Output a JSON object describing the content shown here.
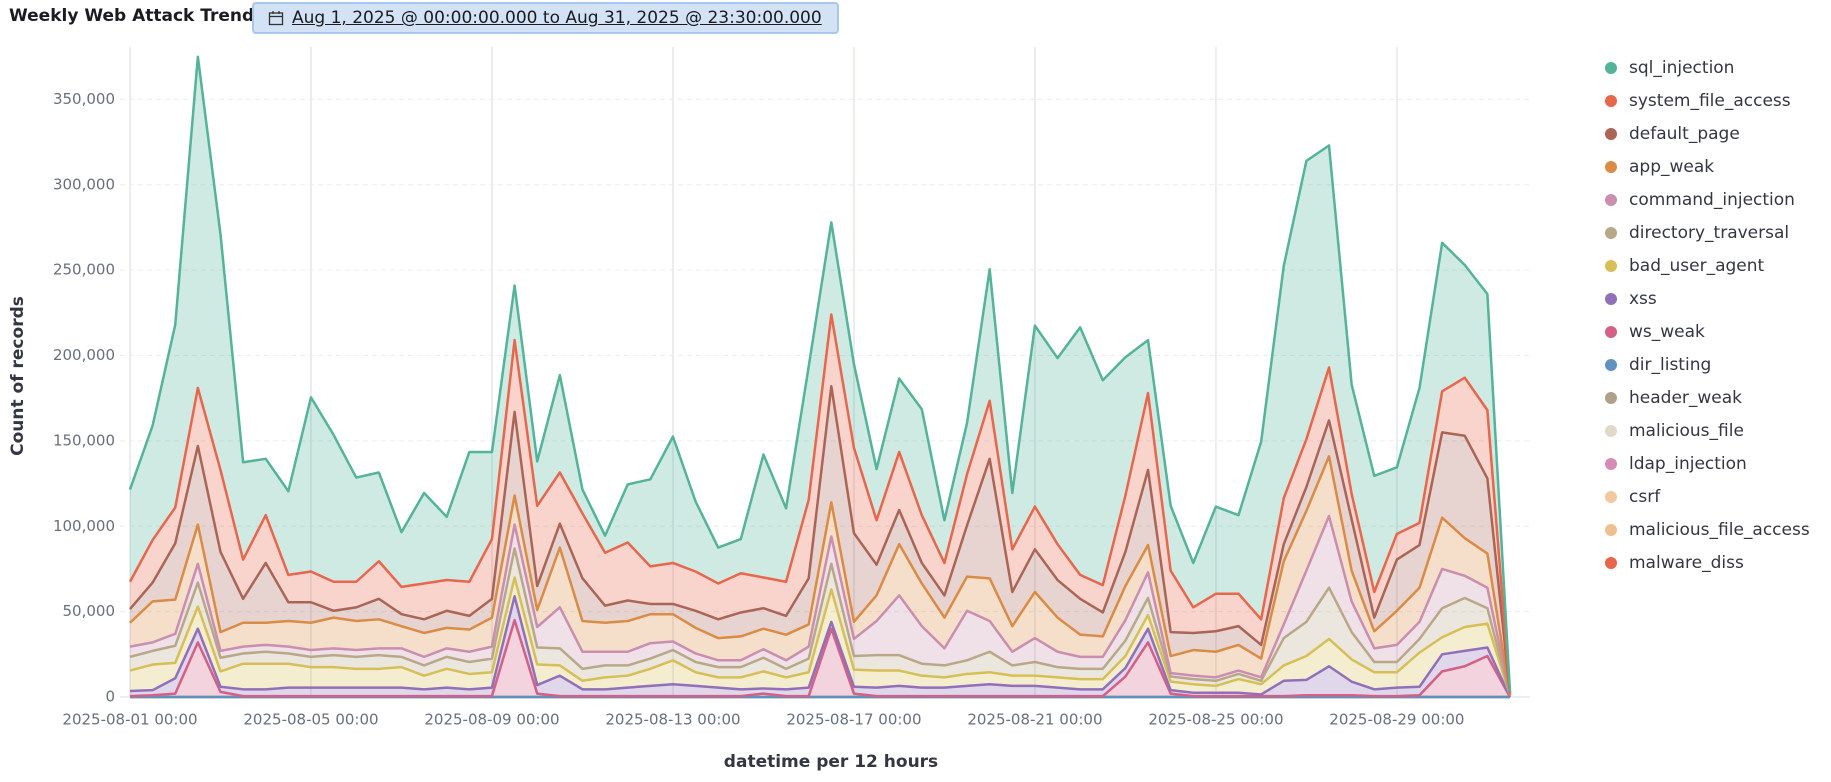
{
  "header": {
    "title": "Weekly Web Attack Trends",
    "date_range": "Aug 1, 2025 @ 00:00:00.000 to Aug 31, 2025 @ 23:30:00.000"
  },
  "chart_data": {
    "type": "area",
    "stacked": true,
    "grid": true,
    "legend": "right",
    "ylabel": "Count of records",
    "xlabel": "datetime per 12 hours",
    "ylim": [
      0,
      376000
    ],
    "yticks": [
      0,
      {
        "value": 50000,
        "label": "50,000"
      },
      {
        "value": 100000,
        "label": "100,000"
      },
      {
        "value": 150000,
        "label": "150,000"
      },
      {
        "value": 200000,
        "label": "200,000"
      },
      {
        "value": 250000,
        "label": "250,000"
      },
      {
        "value": 300000,
        "label": "300,000"
      },
      {
        "value": 350000,
        "label": "350,000"
      }
    ],
    "x": [
      "2025-08-01 00:00",
      "2025-08-01 12:00",
      "2025-08-02 00:00",
      "2025-08-02 12:00",
      "2025-08-03 00:00",
      "2025-08-03 12:00",
      "2025-08-04 00:00",
      "2025-08-04 12:00",
      "2025-08-05 00:00",
      "2025-08-05 12:00",
      "2025-08-06 00:00",
      "2025-08-06 12:00",
      "2025-08-07 00:00",
      "2025-08-07 12:00",
      "2025-08-08 00:00",
      "2025-08-08 12:00",
      "2025-08-09 00:00",
      "2025-08-09 12:00",
      "2025-08-10 00:00",
      "2025-08-10 12:00",
      "2025-08-11 00:00",
      "2025-08-11 12:00",
      "2025-08-12 00:00",
      "2025-08-12 12:00",
      "2025-08-13 00:00",
      "2025-08-13 12:00",
      "2025-08-14 00:00",
      "2025-08-14 12:00",
      "2025-08-15 00:00",
      "2025-08-15 12:00",
      "2025-08-16 00:00",
      "2025-08-16 12:00",
      "2025-08-17 00:00",
      "2025-08-17 12:00",
      "2025-08-18 00:00",
      "2025-08-18 12:00",
      "2025-08-19 00:00",
      "2025-08-19 12:00",
      "2025-08-20 00:00",
      "2025-08-20 12:00",
      "2025-08-21 00:00",
      "2025-08-21 12:00",
      "2025-08-22 00:00",
      "2025-08-22 12:00",
      "2025-08-23 00:00",
      "2025-08-23 12:00",
      "2025-08-24 00:00",
      "2025-08-24 12:00",
      "2025-08-25 00:00",
      "2025-08-25 12:00",
      "2025-08-26 00:00",
      "2025-08-26 12:00",
      "2025-08-27 00:00",
      "2025-08-27 12:00",
      "2025-08-28 00:00",
      "2025-08-28 12:00",
      "2025-08-29 00:00",
      "2025-08-29 12:00",
      "2025-08-30 00:00",
      "2025-08-30 12:00",
      "2025-08-31 00:00",
      "2025-08-31 12:00"
    ],
    "series": [
      {
        "name": "sql_injection",
        "color": "#54B399",
        "values": [
          54000,
          67000,
          107000,
          194000,
          138000,
          57000,
          33000,
          49000,
          102000,
          86000,
          61000,
          52000,
          32000,
          53000,
          37000,
          76000,
          51000,
          32000,
          26000,
          57000,
          14000,
          10000,
          34000,
          51000,
          74000,
          41000,
          21000,
          20000,
          72000,
          43000,
          78000,
          54000,
          49000,
          30000,
          43000,
          62000,
          25000,
          30000,
          77000,
          33000,
          106000,
          109000,
          145000,
          120000,
          81000,
          31000,
          38000,
          26000,
          51000,
          46000,
          104000,
          136000,
          163000,
          130000,
          64000,
          68000,
          39000,
          79000,
          87000,
          66000,
          68000,
          1000
        ]
      },
      {
        "name": "system_file_access",
        "color": "#E7664C",
        "values": [
          16000,
          25000,
          21000,
          34000,
          48000,
          23000,
          28000,
          16000,
          18000,
          17000,
          15000,
          22000,
          16000,
          21000,
          18000,
          20000,
          35000,
          42000,
          47000,
          30000,
          38000,
          31000,
          34000,
          22000,
          24000,
          23000,
          21000,
          23000,
          18000,
          20000,
          46000,
          42000,
          50000,
          26000,
          34000,
          28000,
          19000,
          30000,
          34000,
          25000,
          25000,
          21000,
          14000,
          16000,
          33000,
          45000,
          36000,
          15000,
          22000,
          19000,
          15000,
          27000,
          28000,
          31000,
          15000,
          15000,
          15000,
          13000,
          24000,
          34000,
          40000,
          0
        ]
      },
      {
        "name": "default_page",
        "color": "#AA6556",
        "values": [
          8000,
          11000,
          33000,
          46000,
          47000,
          14000,
          35000,
          11000,
          12000,
          4000,
          8000,
          12000,
          7000,
          8000,
          10000,
          8000,
          11000,
          49000,
          14000,
          14000,
          25000,
          10000,
          12000,
          6000,
          6000,
          10000,
          11000,
          14000,
          12000,
          11000,
          27000,
          68000,
          52000,
          18000,
          20000,
          12000,
          13000,
          30000,
          70000,
          20000,
          25000,
          22000,
          21000,
          14000,
          20000,
          44000,
          14000,
          10000,
          12000,
          11000,
          8000,
          10000,
          14000,
          21000,
          30000,
          8000,
          30000,
          25000,
          50000,
          60000,
          44000,
          1000
        ]
      },
      {
        "name": "app_weak",
        "color": "#DA8B45",
        "values": [
          14000,
          24000,
          20000,
          23000,
          11000,
          14000,
          13000,
          15000,
          16000,
          18000,
          17000,
          17000,
          13000,
          14000,
          12000,
          13000,
          17000,
          17000,
          10000,
          35000,
          18000,
          17000,
          18000,
          17000,
          16000,
          15000,
          13000,
          14000,
          12000,
          15000,
          13000,
          20000,
          10000,
          15000,
          30000,
          25000,
          18000,
          20000,
          25000,
          15000,
          27000,
          20000,
          13000,
          12000,
          20000,
          16000,
          10000,
          15000,
          15000,
          15000,
          11000,
          37000,
          35000,
          35000,
          18000,
          10000,
          20000,
          20000,
          30000,
          22000,
          20000,
          0
        ]
      },
      {
        "name": "command_injection",
        "color": "#CA8EAE",
        "values": [
          6000,
          5000,
          7000,
          11000,
          4000,
          4000,
          4000,
          4000,
          4000,
          4000,
          4000,
          4000,
          5000,
          5000,
          5000,
          6000,
          7000,
          14000,
          12000,
          24000,
          10000,
          8000,
          8000,
          9000,
          5000,
          5000,
          4000,
          4000,
          5000,
          5000,
          7000,
          16000,
          10000,
          20000,
          35000,
          22000,
          10000,
          29000,
          18000,
          8000,
          14000,
          9000,
          7000,
          7000,
          12000,
          15000,
          2000,
          2000,
          2000,
          2000,
          2000,
          8000,
          30000,
          42000,
          18000,
          8000,
          10000,
          10000,
          23000,
          13000,
          12000,
          0
        ]
      },
      {
        "name": "directory_traversal",
        "color": "#B9A888",
        "values": [
          8000,
          8000,
          10000,
          14000,
          8000,
          6000,
          7000,
          6000,
          6000,
          7000,
          7000,
          8000,
          6000,
          6000,
          7000,
          7000,
          8000,
          17000,
          10000,
          10000,
          7000,
          7000,
          6000,
          6000,
          6000,
          6000,
          6000,
          6000,
          8000,
          5000,
          8000,
          15000,
          8000,
          9000,
          9000,
          7000,
          7000,
          8000,
          12000,
          6000,
          8000,
          6000,
          6000,
          6000,
          9000,
          10000,
          3000,
          3000,
          3000,
          3000,
          2000,
          16000,
          20000,
          30000,
          16000,
          6000,
          6000,
          8000,
          17000,
          17000,
          9000,
          0
        ]
      },
      {
        "name": "bad_user_agent",
        "color": "#D6BF57",
        "values": [
          12000,
          15000,
          9000,
          13000,
          9000,
          15000,
          15000,
          14000,
          12000,
          12000,
          11000,
          11000,
          12000,
          8000,
          11000,
          9000,
          9000,
          11000,
          12000,
          6000,
          5000,
          7000,
          7000,
          10000,
          14000,
          8000,
          6000,
          7000,
          10000,
          7000,
          9000,
          19000,
          10000,
          10000,
          9000,
          7000,
          6000,
          7000,
          7000,
          6000,
          6000,
          6000,
          6000,
          6000,
          7000,
          8000,
          5000,
          5000,
          4000,
          8000,
          6000,
          9000,
          14000,
          16000,
          13000,
          10000,
          9000,
          20000,
          10000,
          14000,
          14000,
          1000
        ]
      },
      {
        "name": "xss",
        "color": "#9170B8",
        "values": [
          3000,
          3000,
          9000,
          8000,
          3000,
          4000,
          4000,
          5000,
          5000,
          5000,
          5000,
          5000,
          5000,
          4000,
          5000,
          4000,
          5000,
          14000,
          5000,
          12000,
          4000,
          4000,
          5000,
          6000,
          7000,
          6000,
          5000,
          4000,
          3000,
          4000,
          5000,
          4000,
          4000,
          5000,
          6000,
          5000,
          5000,
          6000,
          7000,
          6000,
          6000,
          5000,
          4000,
          4000,
          5000,
          8000,
          2000,
          2000,
          2000,
          2000,
          1000,
          9000,
          9000,
          17000,
          8000,
          4000,
          5000,
          5000,
          10000,
          9000,
          5000,
          0
        ]
      },
      {
        "name": "ws_weak",
        "color": "#D36086",
        "values": [
          500,
          1000,
          2000,
          32000,
          3000,
          500,
          500,
          500,
          500,
          500,
          500,
          500,
          500,
          500,
          500,
          500,
          500,
          45000,
          2000,
          500,
          500,
          500,
          500,
          500,
          500,
          500,
          500,
          500,
          2000,
          500,
          500,
          40000,
          2000,
          500,
          500,
          500,
          500,
          500,
          500,
          500,
          500,
          500,
          500,
          500,
          12000,
          32000,
          2000,
          500,
          500,
          500,
          500,
          500,
          1000,
          1000,
          1000,
          500,
          500,
          1000,
          15000,
          18000,
          24000,
          0
        ]
      },
      {
        "name": "dir_listing",
        "color": "#6092C0",
        "values": [
          0,
          0,
          0,
          0,
          0,
          0,
          0,
          0,
          0,
          0,
          0,
          0,
          0,
          0,
          0,
          0,
          0,
          0,
          0,
          0,
          0,
          0,
          0,
          0,
          0,
          0,
          0,
          0,
          0,
          0,
          0,
          0,
          0,
          0,
          0,
          0,
          0,
          0,
          0,
          0,
          0,
          0,
          0,
          0,
          0,
          0,
          0,
          0,
          0,
          0,
          0,
          0,
          0,
          0,
          0,
          0,
          0,
          0,
          0,
          0,
          0,
          0
        ]
      },
      {
        "name": "header_weak",
        "color": "#B0A08A",
        "values": [
          0,
          0,
          0,
          0,
          0,
          0,
          0,
          0,
          0,
          0,
          0,
          0,
          0,
          0,
          0,
          0,
          0,
          0,
          0,
          0,
          0,
          0,
          0,
          0,
          0,
          0,
          0,
          0,
          0,
          0,
          0,
          0,
          0,
          0,
          0,
          0,
          0,
          0,
          0,
          0,
          0,
          0,
          0,
          0,
          0,
          0,
          0,
          0,
          0,
          0,
          0,
          0,
          0,
          0,
          0,
          0,
          0,
          0,
          0,
          0,
          0,
          0
        ]
      },
      {
        "name": "malicious_file",
        "color": "#E0D8C8",
        "values": [
          0,
          0,
          0,
          0,
          0,
          0,
          0,
          0,
          0,
          0,
          0,
          0,
          0,
          0,
          0,
          0,
          0,
          0,
          0,
          0,
          0,
          0,
          0,
          0,
          0,
          0,
          0,
          0,
          0,
          0,
          0,
          0,
          0,
          0,
          0,
          0,
          0,
          0,
          0,
          0,
          0,
          0,
          0,
          0,
          0,
          0,
          0,
          0,
          0,
          0,
          0,
          0,
          0,
          0,
          0,
          0,
          0,
          0,
          0,
          0,
          0,
          0
        ]
      },
      {
        "name": "ldap_injection",
        "color": "#D68AB6",
        "values": [
          0,
          0,
          0,
          0,
          0,
          0,
          0,
          0,
          0,
          0,
          0,
          0,
          0,
          0,
          0,
          0,
          0,
          0,
          0,
          0,
          0,
          0,
          0,
          0,
          0,
          0,
          0,
          0,
          0,
          0,
          0,
          0,
          0,
          0,
          0,
          0,
          0,
          0,
          0,
          0,
          0,
          0,
          0,
          0,
          0,
          0,
          0,
          0,
          0,
          0,
          0,
          0,
          0,
          0,
          0,
          0,
          0,
          0,
          0,
          0,
          0,
          0
        ]
      },
      {
        "name": "csrf",
        "color": "#F1C8A0",
        "values": [
          0,
          0,
          0,
          0,
          0,
          0,
          0,
          0,
          0,
          0,
          0,
          0,
          0,
          0,
          0,
          0,
          0,
          0,
          0,
          0,
          0,
          0,
          0,
          0,
          0,
          0,
          0,
          0,
          0,
          0,
          0,
          0,
          0,
          0,
          0,
          0,
          0,
          0,
          0,
          0,
          0,
          0,
          0,
          0,
          0,
          0,
          0,
          0,
          0,
          0,
          0,
          0,
          0,
          0,
          0,
          0,
          0,
          0,
          0,
          0,
          0,
          0
        ]
      },
      {
        "name": "malicious_file_access",
        "color": "#EFC08E",
        "values": [
          0,
          0,
          0,
          0,
          0,
          0,
          0,
          0,
          0,
          0,
          0,
          0,
          0,
          0,
          0,
          0,
          0,
          0,
          0,
          0,
          0,
          0,
          0,
          0,
          0,
          0,
          0,
          0,
          0,
          0,
          0,
          0,
          0,
          0,
          0,
          0,
          0,
          0,
          0,
          0,
          0,
          0,
          0,
          0,
          0,
          0,
          0,
          0,
          0,
          0,
          0,
          0,
          0,
          0,
          0,
          0,
          0,
          0,
          0,
          0,
          0,
          0
        ]
      },
      {
        "name": "malware_diss",
        "color": "#E7664C",
        "values": [
          0,
          0,
          0,
          0,
          0,
          0,
          0,
          0,
          0,
          0,
          0,
          0,
          0,
          0,
          0,
          0,
          0,
          0,
          0,
          0,
          0,
          0,
          0,
          0,
          0,
          0,
          0,
          0,
          0,
          0,
          0,
          0,
          0,
          0,
          0,
          0,
          0,
          0,
          0,
          0,
          0,
          0,
          0,
          0,
          0,
          0,
          0,
          0,
          0,
          0,
          0,
          0,
          0,
          0,
          0,
          0,
          0,
          0,
          0,
          0,
          0,
          0
        ]
      }
    ]
  }
}
